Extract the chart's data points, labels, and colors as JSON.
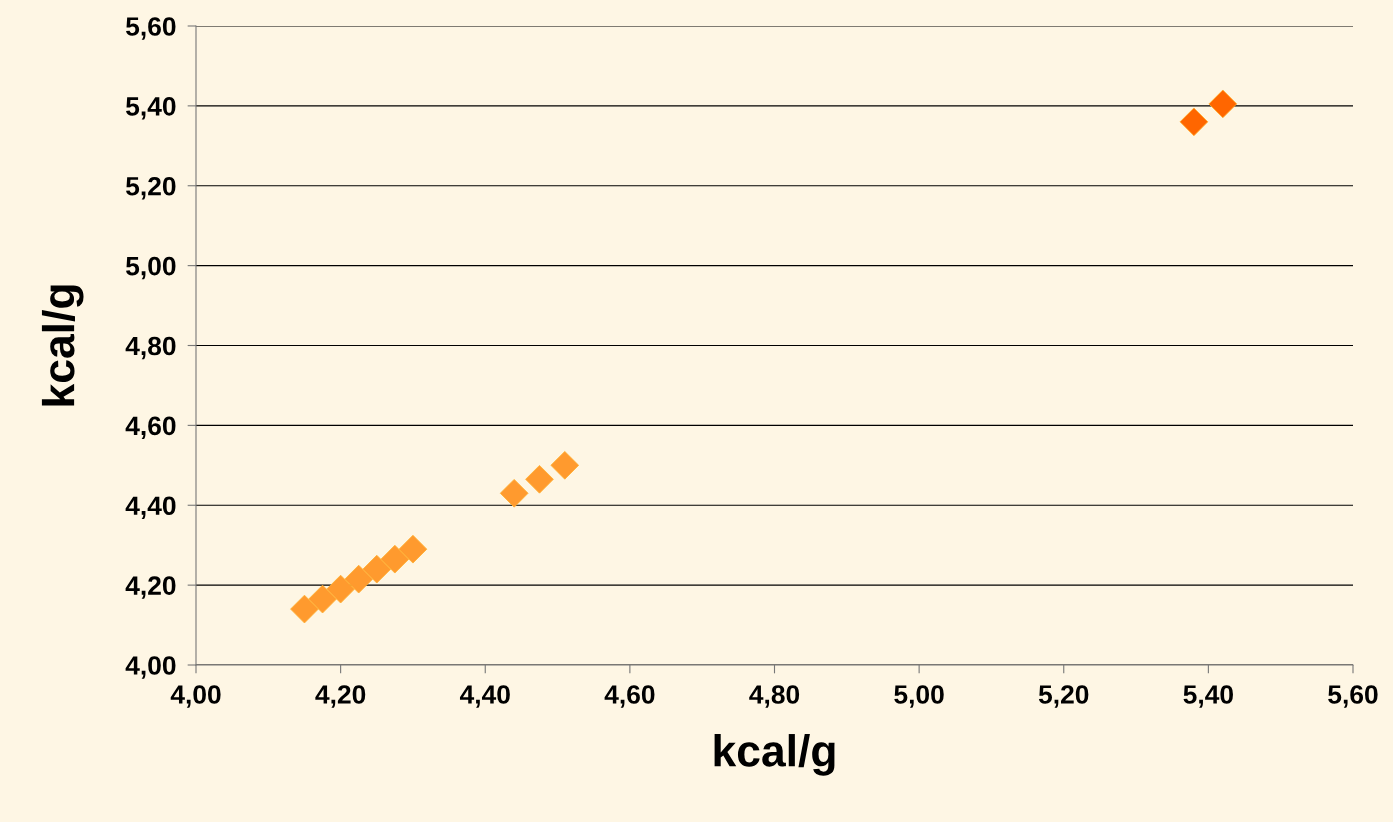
{
  "chart_data": {
    "type": "scatter",
    "xlabel": "kcal/g",
    "ylabel": "kcal/g",
    "xlim": [
      4.0,
      5.6
    ],
    "xticks": [
      {
        "value": 4.0,
        "label": "4,00"
      },
      {
        "value": 4.2,
        "label": "4,20"
      },
      {
        "value": 4.4,
        "label": "4,40"
      },
      {
        "value": 4.6,
        "label": "4,60"
      },
      {
        "value": 4.8,
        "label": "4,80"
      },
      {
        "value": 5.0,
        "label": "5,00"
      },
      {
        "value": 5.2,
        "label": "5,20"
      },
      {
        "value": 5.4,
        "label": "5,40"
      },
      {
        "value": 5.6,
        "label": "5,60"
      }
    ],
    "ylim": [
      4.0,
      5.6
    ],
    "yticks": [
      {
        "value": 4.0,
        "label": "4,00"
      },
      {
        "value": 4.2,
        "label": "4,20"
      },
      {
        "value": 4.4,
        "label": "4,40"
      },
      {
        "value": 4.6,
        "label": "4,60"
      },
      {
        "value": 4.8,
        "label": "4,80"
      },
      {
        "value": 5.0,
        "label": "5,00"
      },
      {
        "value": 5.2,
        "label": "5,20"
      },
      {
        "value": 5.4,
        "label": "5,40"
      },
      {
        "value": 5.6,
        "label": "5,60"
      }
    ],
    "grid": "y",
    "marker": "diamond",
    "series": [
      {
        "color": "#ff9a2e",
        "x": [
          4.15,
          4.175,
          4.2,
          4.225,
          4.25,
          4.275,
          4.3,
          4.44,
          4.475,
          4.51
        ],
        "values": [
          4.14,
          4.165,
          4.19,
          4.215,
          4.24,
          4.265,
          4.29,
          4.43,
          4.465,
          4.5
        ]
      },
      {
        "color": "#ff6600",
        "x": [
          5.38,
          5.42
        ],
        "values": [
          5.36,
          5.405
        ]
      }
    ]
  }
}
